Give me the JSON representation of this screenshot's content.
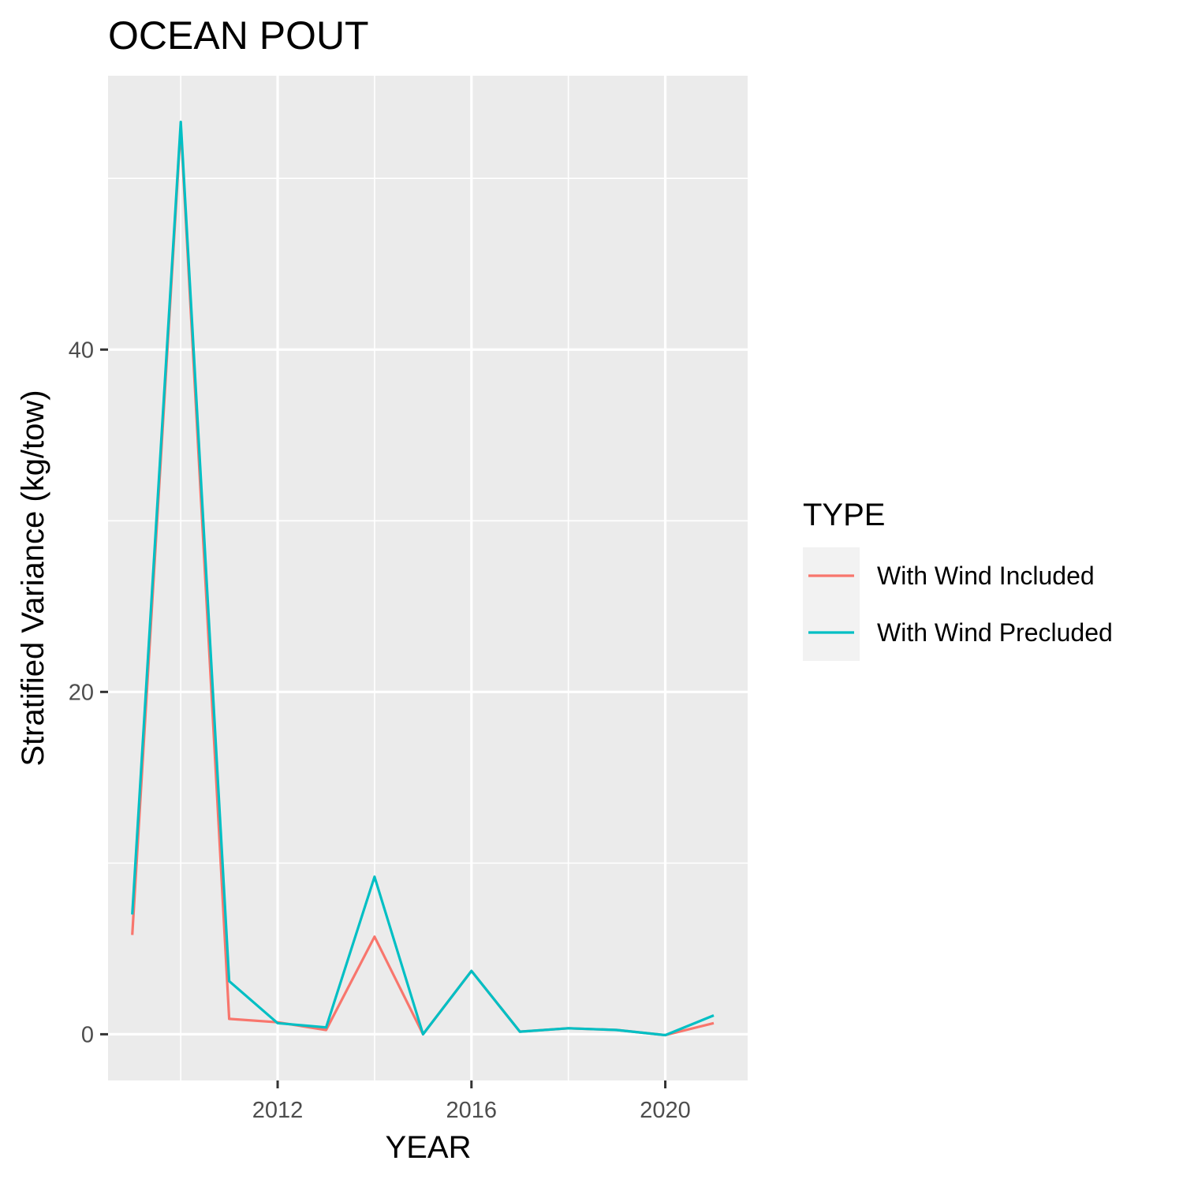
{
  "chart_data": {
    "type": "line",
    "title": "OCEAN POUT",
    "xlabel": "YEAR",
    "ylabel": "Stratified Variance (kg/tow)",
    "xlim": [
      2008.5,
      2021.7
    ],
    "ylim": [
      -2.7,
      56
    ],
    "x_ticks": [
      2012,
      2016,
      2020
    ],
    "x_tick_labels": [
      "2012",
      "2016",
      "2020"
    ],
    "y_ticks": [
      0,
      20,
      40
    ],
    "y_tick_labels": [
      "0",
      "20",
      "40"
    ],
    "x_minor": [
      2010,
      2014,
      2018
    ],
    "y_minor": [
      10,
      30,
      50
    ],
    "grid": true,
    "background": "#EBEBEB",
    "legend": {
      "title": "TYPE",
      "position": "right"
    },
    "x": [
      2009,
      2010,
      2011,
      2012,
      2013,
      2014,
      2015,
      2016,
      2017,
      2018,
      2019,
      2020,
      2021
    ],
    "series": [
      {
        "name": "With Wind Included",
        "color": "#F8766D",
        "values": [
          5.8,
          53.0,
          0.9,
          0.7,
          0.25,
          5.7,
          0.0,
          3.7,
          0.15,
          0.35,
          0.25,
          -0.05,
          0.65
        ]
      },
      {
        "name": "With Wind Precluded",
        "color": "#00BFC4",
        "values": [
          7.0,
          53.3,
          3.1,
          0.65,
          0.4,
          9.2,
          0.0,
          3.7,
          0.15,
          0.35,
          0.25,
          -0.05,
          1.1
        ]
      }
    ]
  }
}
